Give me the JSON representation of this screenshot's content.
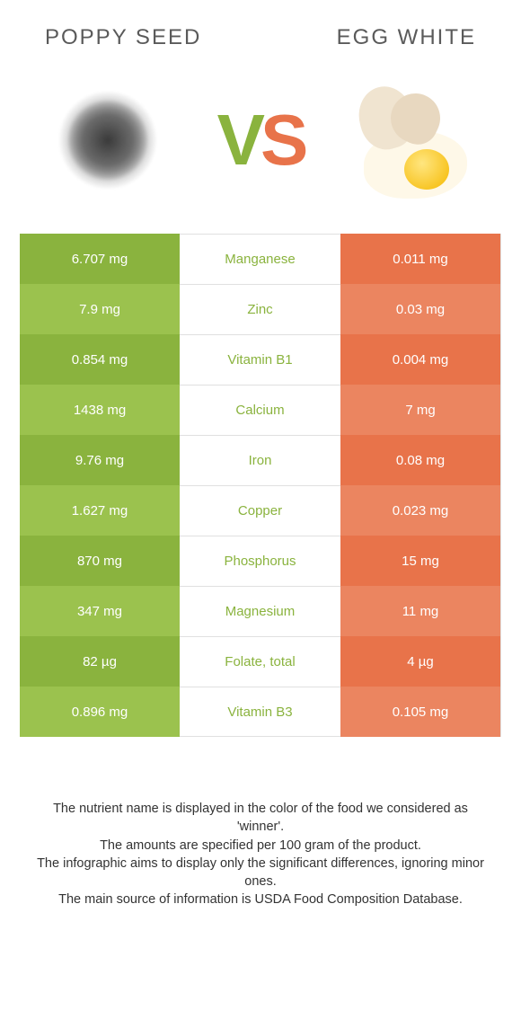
{
  "header": {
    "left_title": "Poppy seed",
    "right_title": "Egg white"
  },
  "vs": {
    "v": "V",
    "s": "S"
  },
  "colors": {
    "left_odd": "#8ab33e",
    "left_even": "#9bc24e",
    "right_odd": "#e8734a",
    "right_even": "#eb8560",
    "nutrient_text": "#8ab33e",
    "value_text": "#ffffff"
  },
  "rows": [
    {
      "left": "6.707 mg",
      "nutrient": "Manganese",
      "right": "0.011 mg"
    },
    {
      "left": "7.9 mg",
      "nutrient": "Zinc",
      "right": "0.03 mg"
    },
    {
      "left": "0.854 mg",
      "nutrient": "Vitamin B1",
      "right": "0.004 mg"
    },
    {
      "left": "1438 mg",
      "nutrient": "Calcium",
      "right": "7 mg"
    },
    {
      "left": "9.76 mg",
      "nutrient": "Iron",
      "right": "0.08 mg"
    },
    {
      "left": "1.627 mg",
      "nutrient": "Copper",
      "right": "0.023 mg"
    },
    {
      "left": "870 mg",
      "nutrient": "Phosphorus",
      "right": "15 mg"
    },
    {
      "left": "347 mg",
      "nutrient": "Magnesium",
      "right": "11 mg"
    },
    {
      "left": "82 µg",
      "nutrient": "Folate, total",
      "right": "4 µg"
    },
    {
      "left": "0.896 mg",
      "nutrient": "Vitamin B3",
      "right": "0.105 mg"
    }
  ],
  "footer": {
    "line1": "The nutrient name is displayed in the color of the food we considered as 'winner'.",
    "line2": "The amounts are specified per 100 gram of the product.",
    "line3": "The infographic aims to display only the significant differences, ignoring minor ones.",
    "line4": "The main source of information is USDA Food Composition Database."
  }
}
